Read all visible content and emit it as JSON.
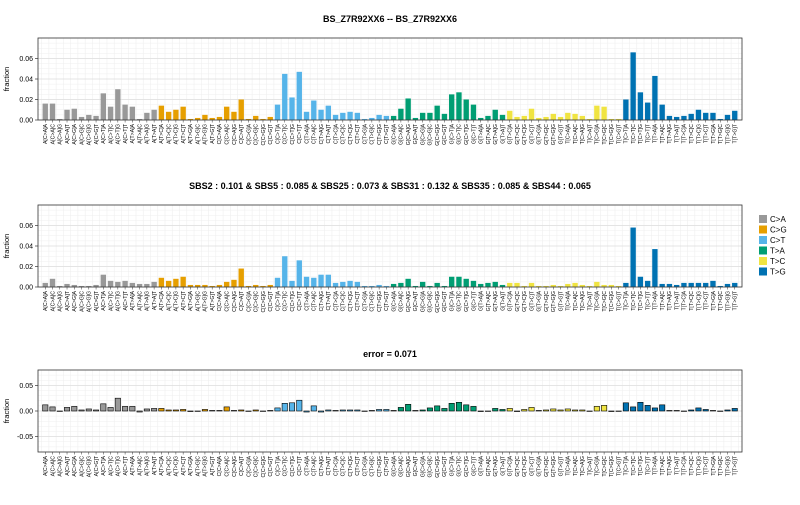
{
  "legend": [
    {
      "label": "C>A",
      "color": "#999999"
    },
    {
      "label": "C>G",
      "color": "#E69F00"
    },
    {
      "label": "C>T",
      "color": "#56B4E9"
    },
    {
      "label": "T>A",
      "color": "#009E73"
    },
    {
      "label": "T>C",
      "color": "#F0E442"
    },
    {
      "label": "T>G",
      "color": "#0072B2"
    }
  ],
  "categories": [
    "A[C>A]A",
    "A[C>A]C",
    "A[C>A]G",
    "A[C>A]T",
    "A[C>G]A",
    "A[C>G]C",
    "A[C>G]G",
    "A[C>G]T",
    "A[C>T]A",
    "A[C>T]C",
    "A[C>T]G",
    "A[C>T]T",
    "A[T>A]A",
    "A[T>A]C",
    "A[T>A]G",
    "A[T>A]T",
    "A[T>C]A",
    "A[T>C]C",
    "A[T>C]G",
    "A[T>C]T",
    "A[T>G]A",
    "A[T>G]C",
    "A[T>G]G",
    "A[T>G]T",
    "C[C>A]A",
    "C[C>A]C",
    "C[C>A]G",
    "C[C>A]T",
    "C[C>G]A",
    "C[C>G]C",
    "C[C>G]G",
    "C[C>G]T",
    "C[C>T]A",
    "C[C>T]C",
    "C[C>T]G",
    "C[C>T]T",
    "C[T>A]A",
    "C[T>A]C",
    "C[T>A]G",
    "C[T>A]T",
    "C[T>C]A",
    "C[T>C]C",
    "C[T>C]G",
    "C[T>C]T",
    "C[T>G]A",
    "C[T>G]C",
    "C[T>G]G",
    "C[T>G]T",
    "G[C>A]A",
    "G[C>A]C",
    "G[C>A]G",
    "G[C>A]T",
    "G[C>G]A",
    "G[C>G]C",
    "G[C>G]G",
    "G[C>G]T",
    "G[C>T]A",
    "G[C>T]C",
    "G[C>T]G",
    "G[C>T]T",
    "G[T>A]A",
    "G[T>A]C",
    "G[T>A]G",
    "G[T>A]T",
    "G[T>C]A",
    "G[T>C]C",
    "G[T>C]G",
    "G[T>C]T",
    "G[T>G]A",
    "G[T>G]C",
    "G[T>G]G",
    "G[T>G]T",
    "T[C>A]A",
    "T[C>A]C",
    "T[C>A]G",
    "T[C>A]T",
    "T[C>G]A",
    "T[C>G]C",
    "T[C>G]G",
    "T[C>G]T",
    "T[C>T]A",
    "T[C>T]C",
    "T[C>T]G",
    "T[C>T]T",
    "T[T>A]A",
    "T[T>A]C",
    "T[T>A]G",
    "T[T>A]T",
    "T[T>C]A",
    "T[T>C]C",
    "T[T>C]G",
    "T[T>C]T",
    "T[T>G]A",
    "T[T>G]C",
    "T[T>G]G",
    "T[T>G]T"
  ],
  "chart_data": [
    {
      "type": "bar",
      "title": "BS_Z7R92XX6 -- BS_Z7R92XX6",
      "ylabel": "fraction",
      "ylim": [
        0,
        0.08
      ],
      "yticks": [
        "0.00",
        "0.02",
        "0.04",
        "0.06"
      ],
      "ytick_values": [
        0,
        0.02,
        0.04,
        0.06
      ],
      "grid": true,
      "values": [
        0.016,
        0.016,
        0.001,
        0.01,
        0.011,
        0.003,
        0.005,
        0.004,
        0.026,
        0.013,
        0.03,
        0.015,
        0.013,
        0.001,
        0.007,
        0.01,
        0.014,
        0.008,
        0.01,
        0.013,
        0.001,
        0.002,
        0.005,
        0.002,
        0.003,
        0.013,
        0.008,
        0.02,
        0.001,
        0.004,
        0.001,
        0.003,
        0.015,
        0.045,
        0.022,
        0.047,
        0.008,
        0.019,
        0.01,
        0.014,
        0.005,
        0.007,
        0.008,
        0.007,
        0.001,
        0.002,
        0.005,
        0.004,
        0.004,
        0.011,
        0.021,
        0.002,
        0.007,
        0.007,
        0.014,
        0.006,
        0.025,
        0.027,
        0.02,
        0.015,
        0.002,
        0.004,
        0.01,
        0.005,
        0.009,
        0.003,
        0.004,
        0.011,
        0.002,
        0.003,
        0.006,
        0.003,
        0.007,
        0.006,
        0.004,
        0.001,
        0.014,
        0.013,
        0.001,
        0.001,
        0.02,
        0.066,
        0.027,
        0.017,
        0.043,
        0.015,
        0.004,
        0.003,
        0.004,
        0.006,
        0.01,
        0.007,
        0.007,
        0.001,
        0.005,
        0.009
      ]
    },
    {
      "type": "bar",
      "title": "SBS2 : 0.101 & SBS5 : 0.085 & SBS25 : 0.073 & SBS31 : 0.132 & SBS35 : 0.085 & SBS44 : 0.065",
      "ylabel": "fraction",
      "ylim": [
        0,
        0.08
      ],
      "yticks": [
        "0.00",
        "0.02",
        "0.04",
        "0.06"
      ],
      "ytick_values": [
        0,
        0.02,
        0.04,
        0.06
      ],
      "grid": true,
      "legend_position": "right",
      "values": [
        0.004,
        0.008,
        0.001,
        0.003,
        0.002,
        0.001,
        0.001,
        0.002,
        0.012,
        0.006,
        0.005,
        0.006,
        0.004,
        0.003,
        0.003,
        0.005,
        0.009,
        0.006,
        0.008,
        0.01,
        0.002,
        0.002,
        0.002,
        0.001,
        0.002,
        0.005,
        0.007,
        0.018,
        0.001,
        0.002,
        0.001,
        0.002,
        0.009,
        0.03,
        0.006,
        0.026,
        0.01,
        0.009,
        0.012,
        0.012,
        0.004,
        0.005,
        0.006,
        0.005,
        0.001,
        0.001,
        0.002,
        0.001,
        0.003,
        0.004,
        0.008,
        0.001,
        0.005,
        0.001,
        0.004,
        0.001,
        0.01,
        0.01,
        0.008,
        0.006,
        0.003,
        0.004,
        0.005,
        0.002,
        0.004,
        0.004,
        0.001,
        0.004,
        0.001,
        0.001,
        0.002,
        0.001,
        0.003,
        0.004,
        0.002,
        0.001,
        0.005,
        0.002,
        0.002,
        0.001,
        0.004,
        0.058,
        0.01,
        0.006,
        0.037,
        0.003,
        0.003,
        0.002,
        0.004,
        0.004,
        0.004,
        0.004,
        0.006,
        0.001,
        0.003,
        0.004
      ]
    },
    {
      "type": "bar",
      "title": "error = 0.071",
      "ylabel": "fraction",
      "ylim": [
        -0.08,
        0.08
      ],
      "yticks": [
        "-0.05",
        "0.00",
        "0.05"
      ],
      "ytick_values": [
        -0.05,
        0,
        0.05
      ],
      "grid": true,
      "values": [
        0.012,
        0.008,
        0.0,
        0.007,
        0.009,
        0.002,
        0.004,
        0.002,
        0.014,
        0.007,
        0.025,
        0.009,
        0.009,
        -0.002,
        0.004,
        0.005,
        0.005,
        0.002,
        0.002,
        0.003,
        -0.001,
        0.0,
        0.003,
        0.001,
        0.001,
        0.008,
        0.001,
        0.002,
        0.0,
        0.002,
        0.0,
        0.001,
        0.006,
        0.015,
        0.016,
        0.021,
        -0.002,
        0.01,
        -0.002,
        0.002,
        0.001,
        0.002,
        0.002,
        0.002,
        0.0,
        0.001,
        0.003,
        0.003,
        0.001,
        0.007,
        0.013,
        0.001,
        0.002,
        0.006,
        0.01,
        0.005,
        0.015,
        0.017,
        0.012,
        0.009,
        -0.001,
        0.0,
        0.005,
        0.003,
        0.005,
        -0.001,
        0.003,
        0.007,
        0.001,
        0.002,
        0.004,
        0.002,
        0.004,
        0.002,
        0.002,
        0.0,
        0.009,
        0.011,
        -0.001,
        0.0,
        0.016,
        0.008,
        0.017,
        0.011,
        0.006,
        0.012,
        0.001,
        0.001,
        0.0,
        0.002,
        0.006,
        0.003,
        0.001,
        0.0,
        0.002,
        0.005
      ]
    }
  ]
}
